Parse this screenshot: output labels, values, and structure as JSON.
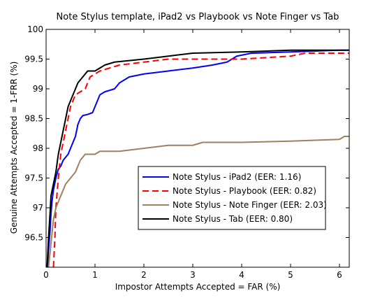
{
  "chart_data": {
    "type": "line",
    "title": "Note Stylus template, iPad2 vs Playbook vs Note Finger vs Tab",
    "xlabel": "Impostor Attempts Accepted = FAR (%)",
    "ylabel": "Genuine Attempts Accepted = 1-FRR (%)",
    "xlim": [
      0,
      6.2
    ],
    "ylim": [
      96,
      100
    ],
    "x_ticks": [
      "0",
      "1",
      "2",
      "3",
      "4",
      "5",
      "6"
    ],
    "y_ticks": [
      "96.5",
      "97",
      "97.5",
      "98",
      "98.5",
      "99",
      "99.5",
      "100"
    ],
    "grid": false,
    "legend_position": "lower-right",
    "series": [
      {
        "name": "Note Stylus - iPad2 (EER: 1.16)",
        "color": "#0000ff",
        "dash": "solid",
        "points": [
          [
            0.03,
            96.0
          ],
          [
            0.05,
            96.3
          ],
          [
            0.08,
            96.6
          ],
          [
            0.1,
            96.9
          ],
          [
            0.12,
            97.1
          ],
          [
            0.15,
            97.3
          ],
          [
            0.2,
            97.5
          ],
          [
            0.25,
            97.65
          ],
          [
            0.3,
            97.7
          ],
          [
            0.35,
            97.8
          ],
          [
            0.4,
            97.85
          ],
          [
            0.45,
            97.9
          ],
          [
            0.5,
            98.0
          ],
          [
            0.55,
            98.1
          ],
          [
            0.6,
            98.2
          ],
          [
            0.65,
            98.4
          ],
          [
            0.7,
            98.5
          ],
          [
            0.75,
            98.55
          ],
          [
            0.85,
            98.57
          ],
          [
            0.95,
            98.6
          ],
          [
            1.0,
            98.7
          ],
          [
            1.05,
            98.8
          ],
          [
            1.1,
            98.9
          ],
          [
            1.2,
            98.95
          ],
          [
            1.4,
            99.0
          ],
          [
            1.5,
            99.1
          ],
          [
            1.7,
            99.2
          ],
          [
            2.0,
            99.25
          ],
          [
            2.5,
            99.3
          ],
          [
            3.0,
            99.35
          ],
          [
            3.4,
            99.4
          ],
          [
            3.7,
            99.45
          ],
          [
            3.9,
            99.55
          ],
          [
            4.2,
            99.6
          ],
          [
            5.0,
            99.62
          ],
          [
            6.0,
            99.65
          ],
          [
            6.2,
            99.65
          ]
        ]
      },
      {
        "name": "Note Stylus - Playbook (EER: 0.82)",
        "color": "#ff0000",
        "dash": "dashed",
        "points": [
          [
            0.15,
            96.0
          ],
          [
            0.18,
            96.5
          ],
          [
            0.2,
            97.0
          ],
          [
            0.25,
            97.5
          ],
          [
            0.3,
            97.9
          ],
          [
            0.35,
            98.1
          ],
          [
            0.4,
            98.3
          ],
          [
            0.45,
            98.5
          ],
          [
            0.5,
            98.7
          ],
          [
            0.55,
            98.8
          ],
          [
            0.6,
            98.9
          ],
          [
            0.7,
            98.95
          ],
          [
            0.8,
            99.0
          ],
          [
            0.85,
            99.1
          ],
          [
            0.9,
            99.2
          ],
          [
            1.0,
            99.25
          ],
          [
            1.1,
            99.3
          ],
          [
            1.3,
            99.35
          ],
          [
            1.5,
            99.4
          ],
          [
            2.0,
            99.45
          ],
          [
            2.5,
            99.5
          ],
          [
            4.0,
            99.5
          ],
          [
            5.0,
            99.55
          ],
          [
            5.3,
            99.6
          ],
          [
            6.2,
            99.6
          ]
        ]
      },
      {
        "name": "Note Stylus - Note Finger (EER: 2.03)",
        "color": "#a08060",
        "dash": "solid",
        "points": [
          [
            0.05,
            96.0
          ],
          [
            0.1,
            96.4
          ],
          [
            0.15,
            96.8
          ],
          [
            0.2,
            97.0
          ],
          [
            0.25,
            97.1
          ],
          [
            0.3,
            97.2
          ],
          [
            0.35,
            97.3
          ],
          [
            0.4,
            97.4
          ],
          [
            0.5,
            97.5
          ],
          [
            0.6,
            97.6
          ],
          [
            0.7,
            97.8
          ],
          [
            0.8,
            97.9
          ],
          [
            1.0,
            97.9
          ],
          [
            1.1,
            97.95
          ],
          [
            1.5,
            97.95
          ],
          [
            2.0,
            98.0
          ],
          [
            2.5,
            98.05
          ],
          [
            3.0,
            98.05
          ],
          [
            3.2,
            98.1
          ],
          [
            4.0,
            98.1
          ],
          [
            5.0,
            98.12
          ],
          [
            6.0,
            98.15
          ],
          [
            6.1,
            98.2
          ],
          [
            6.2,
            98.2
          ]
        ]
      },
      {
        "name": "Note Stylus - Tab (EER: 0.80)",
        "color": "#000000",
        "dash": "solid",
        "points": [
          [
            0.02,
            96.0
          ],
          [
            0.05,
            96.5
          ],
          [
            0.08,
            96.9
          ],
          [
            0.1,
            97.2
          ],
          [
            0.15,
            97.4
          ],
          [
            0.2,
            97.6
          ],
          [
            0.25,
            97.9
          ],
          [
            0.3,
            98.1
          ],
          [
            0.35,
            98.3
          ],
          [
            0.4,
            98.5
          ],
          [
            0.45,
            98.7
          ],
          [
            0.5,
            98.8
          ],
          [
            0.55,
            98.9
          ],
          [
            0.6,
            99.0
          ],
          [
            0.65,
            99.1
          ],
          [
            0.7,
            99.15
          ],
          [
            0.75,
            99.2
          ],
          [
            0.8,
            99.25
          ],
          [
            0.85,
            99.3
          ],
          [
            1.0,
            99.3
          ],
          [
            1.1,
            99.35
          ],
          [
            1.2,
            99.4
          ],
          [
            1.4,
            99.45
          ],
          [
            2.0,
            99.5
          ],
          [
            2.5,
            99.55
          ],
          [
            3.0,
            99.6
          ],
          [
            4.0,
            99.62
          ],
          [
            5.0,
            99.65
          ],
          [
            6.2,
            99.65
          ]
        ]
      }
    ]
  }
}
